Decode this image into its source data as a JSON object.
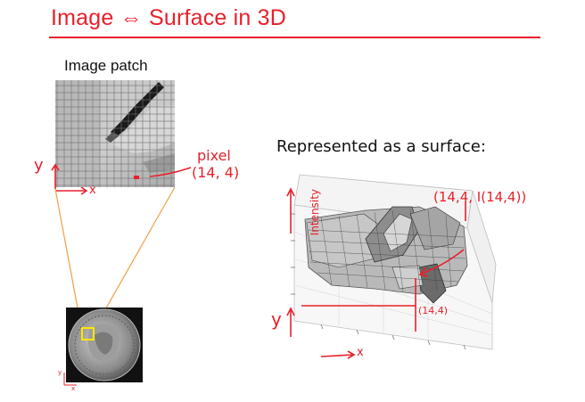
{
  "slide": {
    "title": "Image ⇔ Surface in 3D",
    "accent_color": "#e8202a"
  },
  "patch": {
    "label": "Image patch",
    "axis_y": "y",
    "axis_x": "x",
    "pixel_label": "pixel",
    "pixel_coords": "(14, 4)"
  },
  "surface": {
    "heading": "Represented as a surface:",
    "annotation": "(14,4, I(14,4))",
    "axis_intensity": "Intensity",
    "axis_y": "y",
    "axis_x": "x",
    "base_coords": "(14,4)"
  },
  "coin": {
    "icon": "quarter-coin-photo",
    "axis_y": "y",
    "axis_x": "x"
  }
}
